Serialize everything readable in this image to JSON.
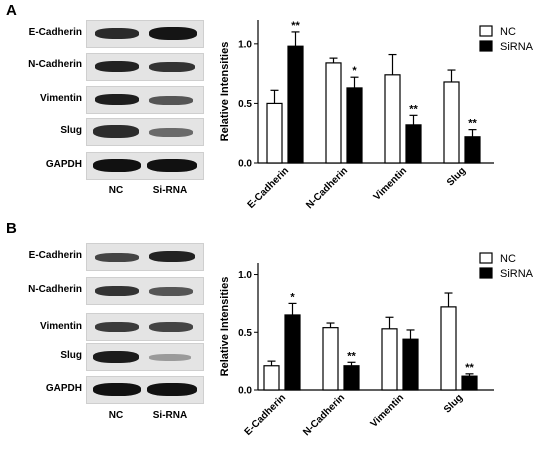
{
  "panels": [
    {
      "letter": "A",
      "blot_rows": [
        "E-Cadherin",
        "N-Cadherin",
        "Vimentin",
        "Slug",
        "GAPDH"
      ],
      "lanes": [
        "NC",
        "Si-RNA"
      ]
    },
    {
      "letter": "B",
      "blot_rows": [
        "E-Cadherin",
        "N-Cadherin",
        "Vimentin",
        "Slug",
        "GAPDH"
      ],
      "lanes": [
        "NC",
        "Si-RNA"
      ]
    }
  ],
  "chart_data": [
    {
      "type": "bar",
      "title": "",
      "xlabel": "",
      "ylabel": "Relative Intensities",
      "ylim": [
        0,
        1.2
      ],
      "yticks": [
        "0.0",
        "0.5",
        "1.0"
      ],
      "categories": [
        "E-Cadherin",
        "N-Cadherin",
        "Vimentin",
        "Slug"
      ],
      "series": [
        {
          "name": "NC",
          "values": [
            0.5,
            0.84,
            0.74,
            0.68
          ],
          "errors": [
            0.11,
            0.04,
            0.17,
            0.1
          ],
          "fill": "#ffffff"
        },
        {
          "name": "SiRNA",
          "values": [
            0.98,
            0.63,
            0.32,
            0.22
          ],
          "errors": [
            0.12,
            0.09,
            0.08,
            0.06
          ],
          "fill": "#000000"
        }
      ],
      "significance": [
        "**",
        "*",
        "**",
        "**"
      ],
      "legend_position": "top-right"
    },
    {
      "type": "bar",
      "title": "",
      "xlabel": "",
      "ylabel": "Relative Intensities",
      "ylim": [
        0,
        1.1
      ],
      "yticks": [
        "0.0",
        "0.5",
        "1.0"
      ],
      "categories": [
        "E-Cadherin",
        "N-Cadherin",
        "Vimentin",
        "Slug"
      ],
      "series": [
        {
          "name": "NC",
          "values": [
            0.21,
            0.54,
            0.53,
            0.72
          ],
          "errors": [
            0.04,
            0.04,
            0.1,
            0.12
          ],
          "fill": "#ffffff"
        },
        {
          "name": "SiRNA",
          "values": [
            0.65,
            0.21,
            0.44,
            0.12
          ],
          "errors": [
            0.1,
            0.03,
            0.08,
            0.02
          ],
          "fill": "#000000"
        }
      ],
      "significance": [
        "*",
        "**",
        "",
        "**"
      ],
      "legend_position": "top-right"
    }
  ]
}
